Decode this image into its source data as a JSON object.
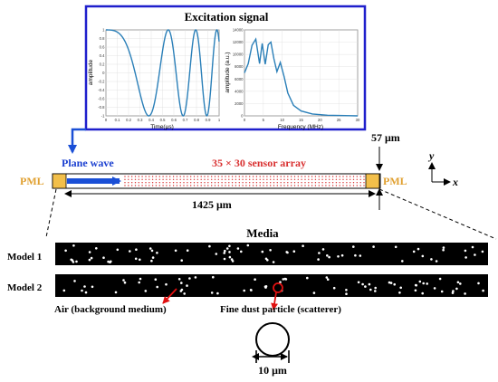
{
  "excitation": {
    "title": "Excitation signal",
    "time_plot": {
      "xlabel": "Time(μs)",
      "ylabel": "amplitude",
      "xticks": [
        "0",
        "0.1",
        "0.2",
        "0.3",
        "0.4",
        "0.5",
        "0.6",
        "0.7",
        "0.8",
        "0.9",
        "1"
      ],
      "yticks": [
        "-1",
        "-0.8",
        "-0.6",
        "-0.4",
        "-0.2",
        "0",
        "0.2",
        "0.4",
        "0.6",
        "0.8",
        "1"
      ],
      "xlim": [
        0,
        1
      ],
      "ylim": [
        -1,
        1
      ]
    },
    "freq_plot": {
      "xlabel": "Frequency (MHz)",
      "ylabel": "amplitude (a.u.)",
      "xticks": [
        "0",
        "5",
        "10",
        "15",
        "20",
        "25",
        "30"
      ],
      "yticks": [
        "0",
        "2000",
        "4000",
        "6000",
        "8000",
        "10000",
        "12000",
        "14000"
      ],
      "xlim": [
        0,
        30
      ],
      "ylim": [
        0,
        14000
      ],
      "points": [
        [
          0,
          7000
        ],
        [
          1,
          8500
        ],
        [
          2,
          11500
        ],
        [
          3,
          12500
        ],
        [
          3.5,
          10500
        ],
        [
          4,
          8500
        ],
        [
          4.7,
          11800
        ],
        [
          5.5,
          8400
        ],
        [
          6.3,
          11600
        ],
        [
          7,
          12000
        ],
        [
          7.8,
          9300
        ],
        [
          8.6,
          7200
        ],
        [
          9.5,
          8700
        ],
        [
          10.5,
          6400
        ],
        [
          11.5,
          3700
        ],
        [
          13,
          1700
        ],
        [
          15,
          800
        ],
        [
          18,
          300
        ],
        [
          22,
          100
        ],
        [
          30,
          0
        ]
      ]
    }
  },
  "domain": {
    "plane_wave_label": "Plane wave",
    "sensor_array_label": "35 × 30 sensor array",
    "pml_left": "PML",
    "pml_right": "PML",
    "height_label": "57 μm",
    "width_label": "1425 μm",
    "axis_y": "y",
    "axis_x": "x"
  },
  "media": {
    "title": "Media",
    "model1_label": "Model 1",
    "model2_label": "Model 2",
    "air_label": "Air (background medium)",
    "particle_label": "Fine dust particle (scatterer)",
    "diameter_label": "10 μm"
  },
  "colors": {
    "frame_blue": "#1f1fcc",
    "arrow_blue": "#1a4fd6",
    "plot_line": "#2a7fb8",
    "sensor_red": "#d93030",
    "pml_fill": "#f2bf4a",
    "pml_text": "#e0a030",
    "highlight_red": "#e01010"
  }
}
